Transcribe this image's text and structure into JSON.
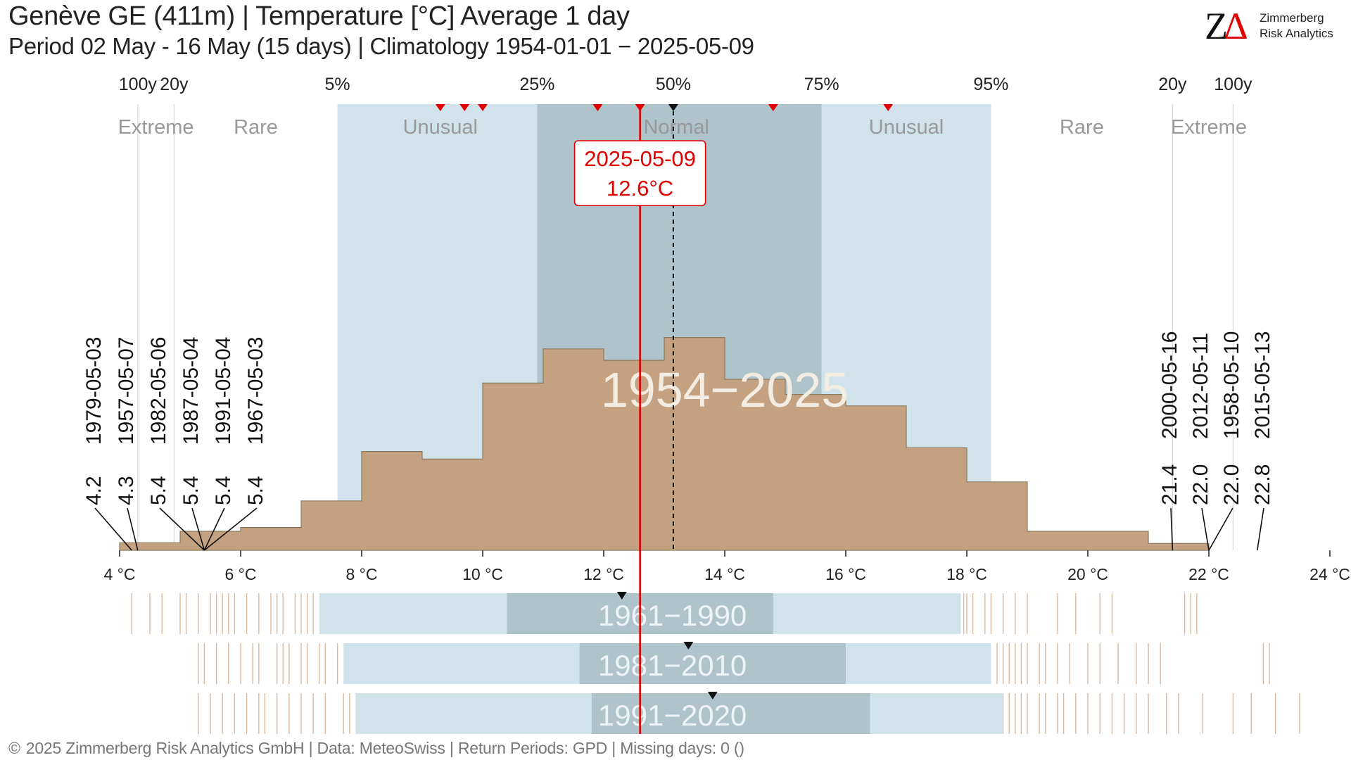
{
  "title": "Genève  GE (411m) | Temperature [°C] Average 1 day",
  "subtitle": "Period 02 May - 16 May (15 days) | Climatology 1954-01-01 − 2025-05-09",
  "logo": {
    "mark": "ZΔ",
    "line1": "Zimmerberg",
    "line2": "Risk Analytics"
  },
  "footer": {
    "copyright_symbol": "©",
    "text": "2025 Zimmerberg Risk Analytics GmbH | Data: MeteoSwiss | Return Periods: GPD | Missing days: 0 ()"
  },
  "colors": {
    "histogram": "#c4a281",
    "histogram_edge": "#8a7a5c",
    "unusual_band": "#d0e3ea",
    "normal_band": "#afc3ca",
    "current": "#e00000",
    "median": "#111111",
    "strip_ticks": "#d9b99d",
    "band_label": "#999999",
    "watermark": "#f3ece3"
  },
  "chart_data": {
    "type": "histogram",
    "x_unit": "°C",
    "xlim": [
      4,
      24
    ],
    "x_ticks": [
      4,
      6,
      8,
      10,
      12,
      14,
      16,
      18,
      20,
      22,
      24
    ],
    "x_tick_labels": [
      "4 °C",
      "6 °C",
      "8 °C",
      "10 °C",
      "12 °C",
      "14 °C",
      "16 °C",
      "18 °C",
      "20 °C",
      "22 °C",
      "24 °C"
    ],
    "histogram": {
      "bin_edges": [
        4.0,
        5.0,
        6.0,
        7.0,
        8.0,
        9.0,
        10.0,
        11.0,
        12.0,
        13.0,
        14.0,
        15.0,
        16.0,
        17.0,
        18.0,
        19.0,
        21.0,
        22.0
      ],
      "counts": [
        1,
        2.5,
        3,
        6.5,
        13,
        12,
        22,
        26.5,
        25,
        28,
        22.5,
        20.5,
        19,
        13.5,
        9,
        2.5,
        0.9
      ],
      "max_count": 31
    },
    "period_label": "1954−2025",
    "percentile_ticks": [
      {
        "label": "100y",
        "x": 4.3
      },
      {
        "label": "20y",
        "x": 4.9
      },
      {
        "label": "5%",
        "x": 7.6
      },
      {
        "label": "25%",
        "x": 10.9
      },
      {
        "label": "50%",
        "x": 13.15
      },
      {
        "label": "75%",
        "x": 15.6
      },
      {
        "label": "95%",
        "x": 18.4
      },
      {
        "label": "20y",
        "x": 21.4
      },
      {
        "label": "100y",
        "x": 22.4
      }
    ],
    "bands": [
      {
        "label": "Extreme",
        "label_x": 4.6,
        "from": 4.0,
        "to": 4.9,
        "shade": "none"
      },
      {
        "label": "Rare",
        "label_x": 6.25,
        "from": 4.9,
        "to": 7.6,
        "shade": "none"
      },
      {
        "label": "Unusual",
        "label_x": 9.3,
        "from": 7.6,
        "to": 10.9,
        "shade": "unusual"
      },
      {
        "label": "Normal",
        "label_x": 13.2,
        "from": 10.9,
        "to": 15.6,
        "shade": "normal"
      },
      {
        "label": "Unusual",
        "label_x": 17.0,
        "from": 15.6,
        "to": 18.4,
        "shade": "unusual"
      },
      {
        "label": "Rare",
        "label_x": 19.9,
        "from": 18.4,
        "to": 21.4,
        "shade": "none"
      },
      {
        "label": "Extreme",
        "label_x": 22.0,
        "from": 21.4,
        "to": 24.0,
        "shade": "none"
      }
    ],
    "recent_markers": [
      9.3,
      9.7,
      10.0,
      11.9,
      12.6,
      14.8,
      16.7
    ],
    "median": 13.15,
    "current": {
      "date": "2025-05-09",
      "value": 12.6,
      "label": "12.6°C"
    },
    "cold_extremes": [
      {
        "date": "1979-05-03",
        "value": 4.2,
        "label": "4.2"
      },
      {
        "date": "1957-05-07",
        "value": 4.3,
        "label": "4.3"
      },
      {
        "date": "1982-05-06",
        "value": 5.4,
        "label": "5.4"
      },
      {
        "date": "1987-05-04",
        "value": 5.4,
        "label": "5.4"
      },
      {
        "date": "1991-05-04",
        "value": 5.4,
        "label": "5.4"
      },
      {
        "date": "1967-05-03",
        "value": 5.4,
        "label": "5.4"
      }
    ],
    "warm_extremes": [
      {
        "date": "2000-05-16",
        "value": 21.4,
        "label": "21.4"
      },
      {
        "date": "2012-05-11",
        "value": 22.0,
        "label": "22.0"
      },
      {
        "date": "1958-05-10",
        "value": 22.0,
        "label": "22.0"
      },
      {
        "date": "2015-05-13",
        "value": 22.8,
        "label": "22.8"
      }
    ],
    "reference_periods": [
      {
        "label": "1961−1990",
        "unusual": [
          7.3,
          17.9
        ],
        "normal": [
          10.4,
          14.8
        ],
        "median": 12.3,
        "ticks": [
          4.2,
          4.5,
          4.7,
          5.0,
          5.1,
          5.3,
          5.5,
          5.6,
          5.7,
          5.8,
          5.9,
          6.1,
          6.3,
          6.5,
          6.6,
          6.7,
          6.9,
          7.0,
          7.1,
          7.2,
          17.95,
          18.0,
          18.1,
          18.3,
          18.4,
          18.6,
          18.8,
          19.0,
          19.5,
          19.8,
          20.2,
          20.4,
          21.6,
          21.7,
          21.8
        ]
      },
      {
        "label": "1981−2010",
        "unusual": [
          7.7,
          18.4
        ],
        "normal": [
          11.6,
          16.0
        ],
        "median": 13.4,
        "ticks": [
          5.3,
          5.4,
          5.6,
          5.8,
          6.0,
          6.2,
          6.3,
          6.6,
          6.7,
          6.8,
          7.0,
          7.1,
          7.3,
          7.4,
          7.6,
          18.5,
          18.6,
          18.7,
          18.8,
          18.9,
          19.0,
          19.2,
          19.3,
          19.5,
          19.7,
          20.0,
          20.2,
          20.5,
          20.8,
          21.0,
          21.2,
          22.9,
          23.0
        ]
      },
      {
        "label": "1991−2020",
        "unusual": [
          7.9,
          18.6
        ],
        "normal": [
          11.8,
          16.4
        ],
        "median": 13.8,
        "ticks": [
          5.3,
          5.5,
          5.7,
          5.9,
          6.1,
          6.3,
          6.4,
          6.6,
          6.8,
          7.0,
          7.2,
          7.4,
          7.7,
          7.8,
          18.6,
          18.7,
          18.8,
          18.9,
          19.0,
          19.2,
          19.3,
          19.5,
          19.6,
          19.8,
          20.0,
          20.2,
          20.4,
          20.6,
          20.8,
          21.0,
          21.3,
          21.5,
          21.9,
          22.4,
          22.7,
          23.1,
          23.5
        ]
      }
    ]
  }
}
